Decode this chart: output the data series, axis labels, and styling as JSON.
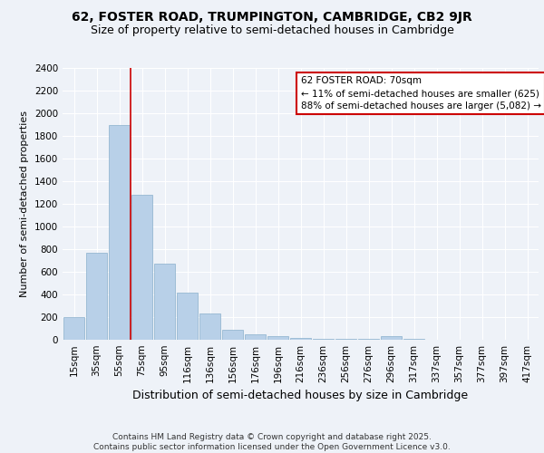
{
  "title": "62, FOSTER ROAD, TRUMPINGTON, CAMBRIDGE, CB2 9JR",
  "subtitle": "Size of property relative to semi-detached houses in Cambridge",
  "xlabel": "Distribution of semi-detached houses by size in Cambridge",
  "ylabel": "Number of semi-detached properties",
  "bins": [
    "15sqm",
    "35sqm",
    "55sqm",
    "75sqm",
    "95sqm",
    "116sqm",
    "136sqm",
    "156sqm",
    "176sqm",
    "196sqm",
    "216sqm",
    "236sqm",
    "256sqm",
    "276sqm",
    "296sqm",
    "317sqm",
    "337sqm",
    "357sqm",
    "377sqm",
    "397sqm",
    "417sqm"
  ],
  "values": [
    200,
    770,
    1900,
    1280,
    670,
    420,
    230,
    90,
    50,
    30,
    20,
    10,
    5,
    5,
    35,
    5,
    3,
    2,
    2,
    2,
    2
  ],
  "bar_color": "#b8d0e8",
  "bar_edge_color": "#8ab0cc",
  "vline_color": "#cc0000",
  "vline_pos": 2.5,
  "annotation_text": "62 FOSTER ROAD: 70sqm\n← 11% of semi-detached houses are smaller (625)\n88% of semi-detached houses are larger (5,082) →",
  "annotation_box_facecolor": "#ffffff",
  "annotation_box_edgecolor": "#cc0000",
  "ylim": [
    0,
    2400
  ],
  "yticks": [
    0,
    200,
    400,
    600,
    800,
    1000,
    1200,
    1400,
    1600,
    1800,
    2000,
    2200,
    2400
  ],
  "background_color": "#eef2f8",
  "footer_text": "Contains HM Land Registry data © Crown copyright and database right 2025.\nContains public sector information licensed under the Open Government Licence v3.0.",
  "title_fontsize": 10,
  "subtitle_fontsize": 9,
  "xlabel_fontsize": 9,
  "ylabel_fontsize": 8,
  "tick_fontsize": 7.5,
  "annotation_fontsize": 7.5,
  "footer_fontsize": 6.5
}
